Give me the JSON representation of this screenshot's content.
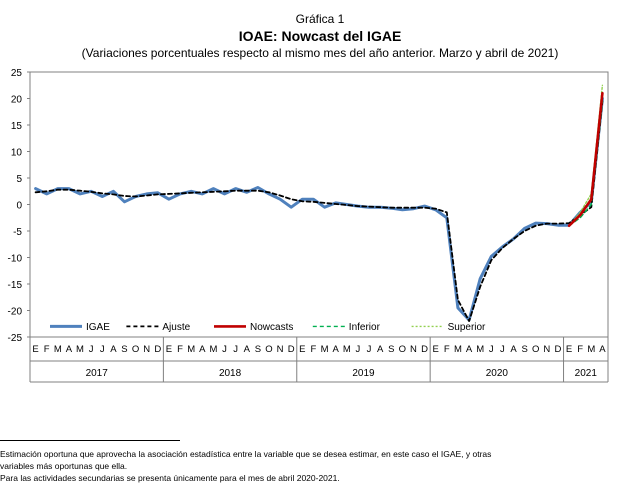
{
  "header": {
    "figure_label": "Gráfica 1",
    "title": "IOAE: Nowcast del IGAE",
    "subtitle": "(Variaciones porcentuales respecto al mismo mes del año anterior. Marzo y abril de 2021)"
  },
  "chart_data": {
    "type": "line",
    "title": "IOAE: Nowcast del IGAE",
    "subtitle": "(Variaciones porcentuales respecto al mismo mes del año anterior. Marzo y abril de 2021)",
    "xlabel": "",
    "ylabel": "",
    "ylim": [
      -25,
      25
    ],
    "yticks": [
      25,
      20,
      15,
      10,
      5,
      0,
      -5,
      -10,
      -15,
      -20,
      -25
    ],
    "grid": false,
    "legend_position": "bottom-left inside",
    "month_labels": [
      "E",
      "F",
      "M",
      "A",
      "M",
      "J",
      "J",
      "A",
      "S",
      "O",
      "N",
      "D",
      "E",
      "F",
      "M",
      "A",
      "M",
      "J",
      "J",
      "A",
      "S",
      "O",
      "N",
      "D",
      "E",
      "F",
      "M",
      "A",
      "M",
      "J",
      "J",
      "A",
      "S",
      "O",
      "N",
      "D",
      "E",
      "F",
      "M",
      "A",
      "M",
      "J",
      "J",
      "A",
      "S",
      "O",
      "N",
      "D",
      "E",
      "F",
      "M",
      "A"
    ],
    "year_labels": [
      {
        "label": "2017",
        "start": 0,
        "end": 11
      },
      {
        "label": "2018",
        "start": 12,
        "end": 23
      },
      {
        "label": "2019",
        "start": 24,
        "end": 35
      },
      {
        "label": "2020",
        "start": 36,
        "end": 47
      },
      {
        "label": "2021",
        "start": 48,
        "end": 51
      }
    ],
    "series": [
      {
        "name": "IGAE",
        "color": "#4f81bd",
        "style": "solid",
        "start_index": 0,
        "values": [
          3.0,
          2.0,
          3.0,
          3.0,
          2.0,
          2.5,
          1.5,
          2.5,
          0.5,
          1.5,
          2.0,
          2.2,
          1.0,
          2.0,
          2.5,
          2.0,
          3.0,
          2.0,
          3.0,
          2.3,
          3.2,
          2.0,
          1.0,
          -0.5,
          1.0,
          1.0,
          -0.5,
          0.3,
          0.0,
          -0.3,
          -0.5,
          -0.5,
          -0.7,
          -1.0,
          -0.8,
          -0.3,
          -1.0,
          -2.5,
          -19.5,
          -21.8,
          -14.0,
          -9.8,
          -8.0,
          -6.5,
          -4.5,
          -3.5,
          -3.6,
          -3.9,
          -3.9,
          -1.5,
          0.5,
          20.0
        ]
      },
      {
        "name": "Ajuste",
        "color": "#000000",
        "style": "dashed",
        "start_index": 0,
        "values": [
          2.3,
          2.5,
          2.8,
          2.8,
          2.6,
          2.4,
          2.1,
          1.9,
          1.6,
          1.5,
          1.7,
          1.9,
          2.0,
          2.1,
          2.2,
          2.3,
          2.4,
          2.5,
          2.6,
          2.6,
          2.6,
          2.3,
          1.7,
          1.0,
          0.6,
          0.5,
          0.3,
          0.1,
          -0.1,
          -0.3,
          -0.4,
          -0.5,
          -0.6,
          -0.6,
          -0.6,
          -0.6,
          -0.8,
          -1.5,
          -18.0,
          -22.0,
          -15.5,
          -10.5,
          -8.2,
          -6.5,
          -5.0,
          -4.0,
          -3.6,
          -3.6,
          -3.5,
          -2.0,
          -0.5,
          19.5
        ]
      },
      {
        "name": "Nowcasts",
        "color": "#c00000",
        "style": "solid",
        "start_index": 48,
        "values": [
          -4.0,
          -2.0,
          1.0,
          21.0
        ]
      },
      {
        "name": "Inferior",
        "color": "#00b050",
        "style": "dashed",
        "start_index": 48,
        "values": [
          -4.0,
          -2.5,
          0.0,
          19.5
        ]
      },
      {
        "name": "Superior",
        "color": "#92d050",
        "style": "dotted",
        "start_index": 48,
        "values": [
          -4.0,
          -1.5,
          2.0,
          22.5
        ]
      }
    ]
  },
  "notes": [
    "Estimación oportuna que aprovecha la asociación estadística entre la variable que se desea estimar, en este caso el IGAE, y otras",
    "variables más oportunas que ella.",
    "Para las actividades secundarias se presenta únicamente para el mes de abril 2020-2021."
  ]
}
